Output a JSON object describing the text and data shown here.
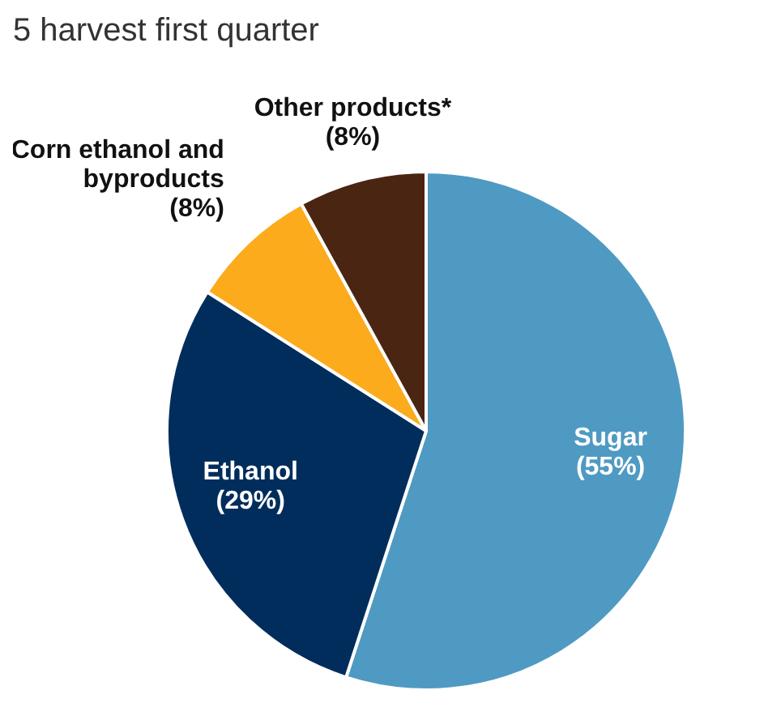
{
  "chart_data": {
    "type": "pie",
    "title": "5 harvest first quarter",
    "categories": [
      "Sugar",
      "Ethanol",
      "Corn ethanol and byproducts",
      "Other products*"
    ],
    "values": [
      55,
      29,
      8,
      8
    ],
    "colors": [
      "#4f9ac2",
      "#002d5c",
      "#fbab1c",
      "#4a2512"
    ],
    "value_labels": [
      "(55%)",
      "(29%)",
      "(8%)",
      "(8%)"
    ],
    "legend": false
  }
}
